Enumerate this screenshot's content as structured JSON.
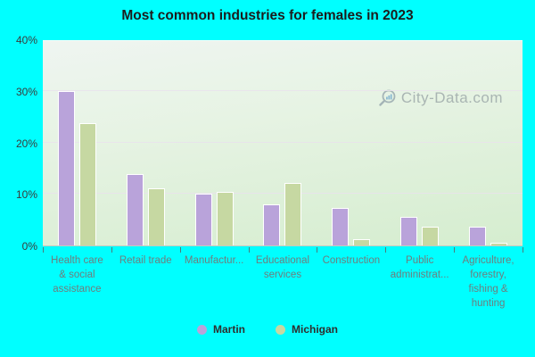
{
  "title": "Most common industries for females in 2023",
  "watermark": "City-Data.com",
  "legend": {
    "items": [
      {
        "label": "Martin",
        "color": "#b9a3da"
      },
      {
        "label": "Michigan",
        "color": "#c6d8a2"
      }
    ]
  },
  "chart_data": {
    "type": "bar",
    "title": "Most common industries for females in 2023",
    "categories": [
      "Health care & social assistance",
      "Retail trade",
      "Manufacturing",
      "Educational services",
      "Construction",
      "Public administration",
      "Agriculture, forestry, fishing & hunting"
    ],
    "category_display_lines": [
      [
        "Health care",
        "& social",
        "assistance"
      ],
      [
        "Retail trade"
      ],
      [
        "Manufactur..."
      ],
      [
        "Educational",
        "services"
      ],
      [
        "Construction"
      ],
      [
        "Public",
        "administrat..."
      ],
      [
        "Agriculture,",
        "forestry,",
        "fishing &",
        "hunting"
      ]
    ],
    "series": [
      {
        "name": "Martin",
        "color": "#b9a3da",
        "values": [
          30,
          13.8,
          10,
          8,
          7.2,
          5.5,
          3.6
        ]
      },
      {
        "name": "Michigan",
        "color": "#c6d8a2",
        "values": [
          23.8,
          11,
          10.4,
          12.2,
          1.3,
          3.6,
          0.6
        ]
      }
    ],
    "ylabel": "",
    "xlabel": "",
    "ylim": [
      0,
      40
    ],
    "y_ticks": [
      "0%",
      "10%",
      "20%",
      "30%",
      "40%"
    ],
    "grid": true,
    "legend_position": "bottom"
  }
}
